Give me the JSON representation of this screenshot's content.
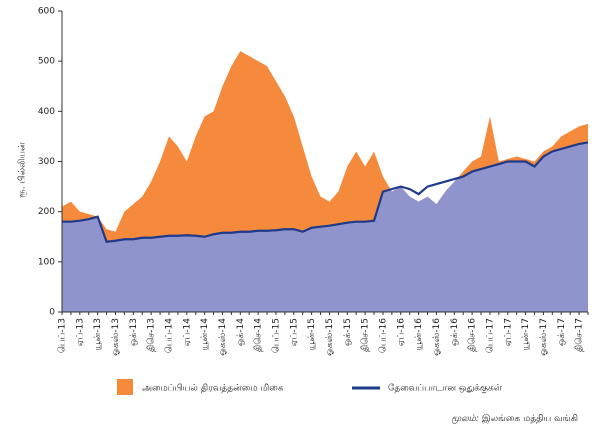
{
  "chart_data": {
    "type": "area",
    "y_axis_label": "ரூ. பில்லியன்",
    "categories": [
      "பெப்-13",
      null,
      "ஏப்-13",
      null,
      "யூன்-13",
      null,
      "ஓகஸ்-13",
      null,
      "ஒக்-13",
      null,
      "திசெ-13",
      null,
      "பெப்-14",
      null,
      "ஏப்-14",
      null,
      "யூன்-14",
      null,
      "ஓகஸ்-14",
      null,
      "ஒக்-14",
      null,
      "திசெ-14",
      null,
      "பெப்-15",
      null,
      "ஏப்-15",
      null,
      "யூன்-15",
      null,
      "ஓகஸ்-15",
      null,
      "ஒக்-15",
      null,
      "திசெ-15",
      null,
      "பெப்-16",
      null,
      "ஏப்-16",
      null,
      "யூன்-16",
      null,
      "ஓகஸ்-16",
      null,
      "ஒக்-16",
      null,
      "திசெ-16",
      null,
      "பெப்-17",
      null,
      "ஏப்-17",
      null,
      "யூன்-17",
      null,
      "ஓகஸ்-17",
      null,
      "ஒக்-17",
      null,
      "திசெ-17",
      null
    ],
    "series": [
      {
        "name": "அமைப்பியல் திரவத்தன்மை மிகை",
        "color": "#f58a3c",
        "values": [
          210,
          220,
          200,
          195,
          190,
          165,
          160,
          200,
          215,
          230,
          260,
          300,
          350,
          330,
          300,
          350,
          390,
          400,
          450,
          490,
          520,
          510,
          500,
          490,
          460,
          430,
          390,
          330,
          270,
          230,
          220,
          240,
          290,
          320,
          290,
          320,
          270,
          240,
          250,
          230,
          220,
          230,
          215,
          240,
          260,
          280,
          300,
          310,
          390,
          300,
          305,
          310,
          305,
          300,
          320,
          330,
          350,
          360,
          370,
          375
        ]
      },
      {
        "name": "தேவைப்பாடான ஒதுக்குகள்",
        "color": "#1f3a8a",
        "fill": "#8f94cc",
        "values": [
          180,
          180,
          182,
          185,
          190,
          140,
          142,
          145,
          145,
          148,
          148,
          150,
          152,
          152,
          153,
          152,
          150,
          155,
          158,
          158,
          160,
          160,
          162,
          162,
          163,
          165,
          165,
          160,
          168,
          170,
          172,
          175,
          178,
          180,
          180,
          182,
          240,
          245,
          250,
          245,
          235,
          250,
          255,
          260,
          265,
          270,
          280,
          285,
          290,
          295,
          300,
          300,
          300,
          290,
          310,
          320,
          325,
          330,
          335,
          338
        ]
      }
    ],
    "ylim": [
      0,
      600
    ],
    "yticks": [
      0,
      100,
      200,
      300,
      400,
      500,
      600
    ],
    "source_label": "மூலம்:",
    "source_text": "இலங்கை மத்திய வங்கி"
  }
}
